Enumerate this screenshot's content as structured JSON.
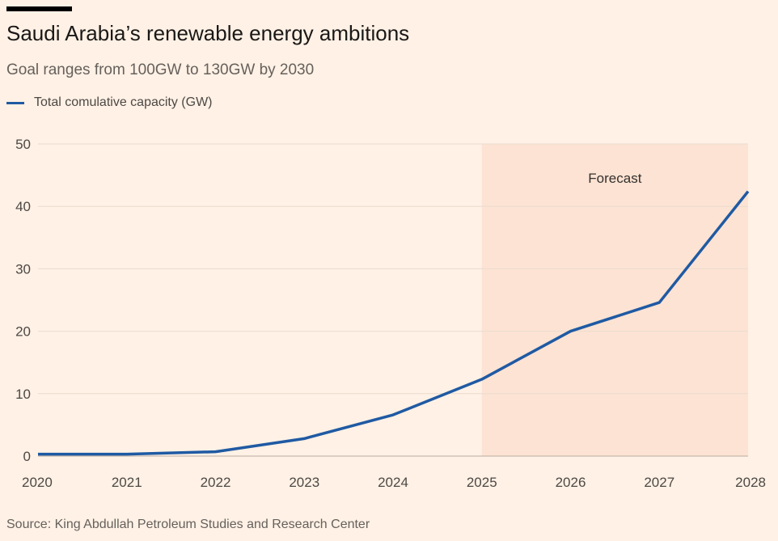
{
  "title": "Saudi Arabia’s renewable energy ambitions",
  "subtitle": "Goal ranges from 100GW to 130GW by 2030",
  "source": "Source: King Abdullah Petroleum Studies and Research Center",
  "colors": {
    "background": "#fff1e5",
    "line": "#1f5aa3",
    "forecast_band": "#fde3d3",
    "grid": "#e9dccf",
    "axis_text": "#4d4845"
  },
  "chart_data": {
    "type": "line",
    "x": [
      2020,
      2021,
      2022,
      2023,
      2024,
      2025,
      2026,
      2027,
      2028
    ],
    "series": [
      {
        "name": "Total comulative capacity (GW)",
        "values": [
          0.3,
          0.3,
          0.7,
          2.8,
          6.6,
          12.3,
          20.0,
          24.6,
          42.4
        ]
      }
    ],
    "xlim": [
      2020,
      2028
    ],
    "ylim": [
      0,
      50
    ],
    "yticks": [
      0,
      10,
      20,
      30,
      40,
      50
    ],
    "xticks": [
      "2020",
      "2021",
      "2022",
      "2023",
      "2024",
      "2025",
      "2026",
      "2027",
      "2028"
    ],
    "grid": true,
    "forecast": {
      "label": "Forecast",
      "from": 2025,
      "to": 2028
    }
  }
}
